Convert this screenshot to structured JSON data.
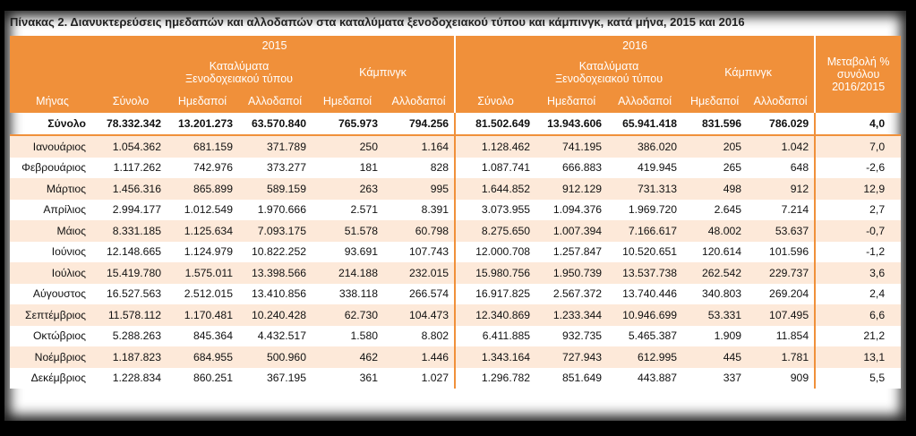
{
  "title": "Πίνακας 2. Διανυκτερεύσεις ημεδαπών και αλλοδαπών στα καταλύματα ξενοδοχειακού τύπου και κάμπινγκ, κατά μήνα, 2015 και 2016",
  "header": {
    "year_2015": "2015",
    "year_2016": "2016",
    "hotels_line1": "Καταλύματα",
    "hotels_line2": "Ξενοδοχειακού τύπου",
    "camping": "Κάμπινγκ",
    "change_line1": "Μεταβολή %",
    "change_line2": "συνόλου",
    "change_line3": "2016/2015",
    "month": "Μήνας",
    "total": "Σύνολο",
    "domestic": "Ημεδαποί",
    "foreign": "Αλλοδαποί"
  },
  "rows": [
    {
      "month": "Σύνολο",
      "t15": "78.332.342",
      "h15d": "13.201.273",
      "h15f": "63.570.840",
      "c15d": "765.973",
      "c15f": "794.256",
      "t16": "81.502.649",
      "h16d": "13.943.606",
      "h16f": "65.941.418",
      "c16d": "831.596",
      "c16f": "786.029",
      "chg": "4,0"
    },
    {
      "month": "Ιανουάριος",
      "t15": "1.054.362",
      "h15d": "681.159",
      "h15f": "371.789",
      "c15d": "250",
      "c15f": "1.164",
      "t16": "1.128.462",
      "h16d": "741.195",
      "h16f": "386.020",
      "c16d": "205",
      "c16f": "1.042",
      "chg": "7,0"
    },
    {
      "month": "Φεβρουάριος",
      "t15": "1.117.262",
      "h15d": "742.976",
      "h15f": "373.277",
      "c15d": "181",
      "c15f": "828",
      "t16": "1.087.741",
      "h16d": "666.883",
      "h16f": "419.945",
      "c16d": "265",
      "c16f": "648",
      "chg": "-2,6"
    },
    {
      "month": "Μάρτιος",
      "t15": "1.456.316",
      "h15d": "865.899",
      "h15f": "589.159",
      "c15d": "263",
      "c15f": "995",
      "t16": "1.644.852",
      "h16d": "912.129",
      "h16f": "731.313",
      "c16d": "498",
      "c16f": "912",
      "chg": "12,9"
    },
    {
      "month": "Απρίλιος",
      "t15": "2.994.177",
      "h15d": "1.012.549",
      "h15f": "1.970.666",
      "c15d": "2.571",
      "c15f": "8.391",
      "t16": "3.073.955",
      "h16d": "1.094.376",
      "h16f": "1.969.720",
      "c16d": "2.645",
      "c16f": "7.214",
      "chg": "2,7"
    },
    {
      "month": "Μάιος",
      "t15": "8.331.185",
      "h15d": "1.125.634",
      "h15f": "7.093.175",
      "c15d": "51.578",
      "c15f": "60.798",
      "t16": "8.275.650",
      "h16d": "1.007.394",
      "h16f": "7.166.617",
      "c16d": "48.002",
      "c16f": "53.637",
      "chg": "-0,7"
    },
    {
      "month": "Ιούνιος",
      "t15": "12.148.665",
      "h15d": "1.124.979",
      "h15f": "10.822.252",
      "c15d": "93.691",
      "c15f": "107.743",
      "t16": "12.000.708",
      "h16d": "1.257.847",
      "h16f": "10.520.651",
      "c16d": "120.614",
      "c16f": "101.596",
      "chg": "-1,2"
    },
    {
      "month": "Ιούλιος",
      "t15": "15.419.780",
      "h15d": "1.575.011",
      "h15f": "13.398.566",
      "c15d": "214.188",
      "c15f": "232.015",
      "t16": "15.980.756",
      "h16d": "1.950.739",
      "h16f": "13.537.738",
      "c16d": "262.542",
      "c16f": "229.737",
      "chg": "3,6"
    },
    {
      "month": "Αύγουστος",
      "t15": "16.527.563",
      "h15d": "2.512.015",
      "h15f": "13.410.856",
      "c15d": "338.118",
      "c15f": "266.574",
      "t16": "16.917.825",
      "h16d": "2.567.372",
      "h16f": "13.740.446",
      "c16d": "340.803",
      "c16f": "269.204",
      "chg": "2,4"
    },
    {
      "month": "Σεπτέμβριος",
      "t15": "11.578.112",
      "h15d": "1.170.481",
      "h15f": "10.240.428",
      "c15d": "62.730",
      "c15f": "104.473",
      "t16": "12.340.869",
      "h16d": "1.233.344",
      "h16f": "10.946.699",
      "c16d": "53.331",
      "c16f": "107.495",
      "chg": "6,6"
    },
    {
      "month": "Οκτώβριος",
      "t15": "5.288.263",
      "h15d": "845.364",
      "h15f": "4.432.517",
      "c15d": "1.580",
      "c15f": "8.802",
      "t16": "6.411.885",
      "h16d": "932.735",
      "h16f": "5.465.387",
      "c16d": "1.909",
      "c16f": "11.854",
      "chg": "21,2"
    },
    {
      "month": "Νοέμβριος",
      "t15": "1.187.823",
      "h15d": "684.955",
      "h15f": "500.960",
      "c15d": "462",
      "c15f": "1.446",
      "t16": "1.343.164",
      "h16d": "727.943",
      "h16f": "612.995",
      "c16d": "445",
      "c16f": "1.781",
      "chg": "13,1"
    },
    {
      "month": "Δεκέμβριος",
      "t15": "1.228.834",
      "h15d": "860.251",
      "h15f": "367.195",
      "c15d": "361",
      "c15f": "1.027",
      "t16": "1.296.782",
      "h16d": "851.649",
      "h16f": "443.887",
      "c16d": "337",
      "c16f": "909",
      "chg": "5,5"
    }
  ]
}
